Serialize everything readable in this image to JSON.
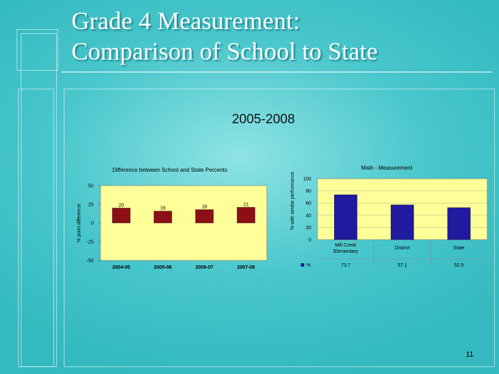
{
  "slide": {
    "title_line1": "Grade 4 Measurement:",
    "title_line2": "Comparison of School to State",
    "subtitle": "2005-2008",
    "page_number": "11"
  },
  "colors": {
    "background": "#47c6cb",
    "plot_area": "#ffff99",
    "bar_diff": "#8b0f14",
    "bar_perf": "#1f1a9e"
  },
  "chart_data": [
    {
      "type": "bar",
      "title": "Difference between School and State Percents",
      "ylabel": "% point difference",
      "xlabel": "",
      "categories": [
        "2004-05",
        "2005-06",
        "2006-07",
        "2007-08"
      ],
      "values": [
        20,
        16,
        18,
        21
      ],
      "value_labels": [
        "20",
        "16",
        "18",
        "21"
      ],
      "ylim": [
        -50,
        50
      ],
      "yticks": [
        "50",
        "25",
        "0",
        "-25",
        "-50"
      ],
      "grid": false
    },
    {
      "type": "bar",
      "title": "Math - Measurement",
      "ylabel": "% with similar performance",
      "xlabel": "",
      "categories": [
        "Mill Creek Elementary",
        "District",
        "State"
      ],
      "series": [
        {
          "name": "%",
          "values": [
            73.7,
            57.1,
            52.5
          ],
          "value_labels": [
            "73.7",
            "57.1",
            "52.5"
          ]
        }
      ],
      "ylim": [
        0,
        100
      ],
      "yticks": [
        "100",
        "80",
        "60",
        "40",
        "20",
        "0"
      ],
      "grid": true,
      "legend": "data-table-left"
    }
  ]
}
